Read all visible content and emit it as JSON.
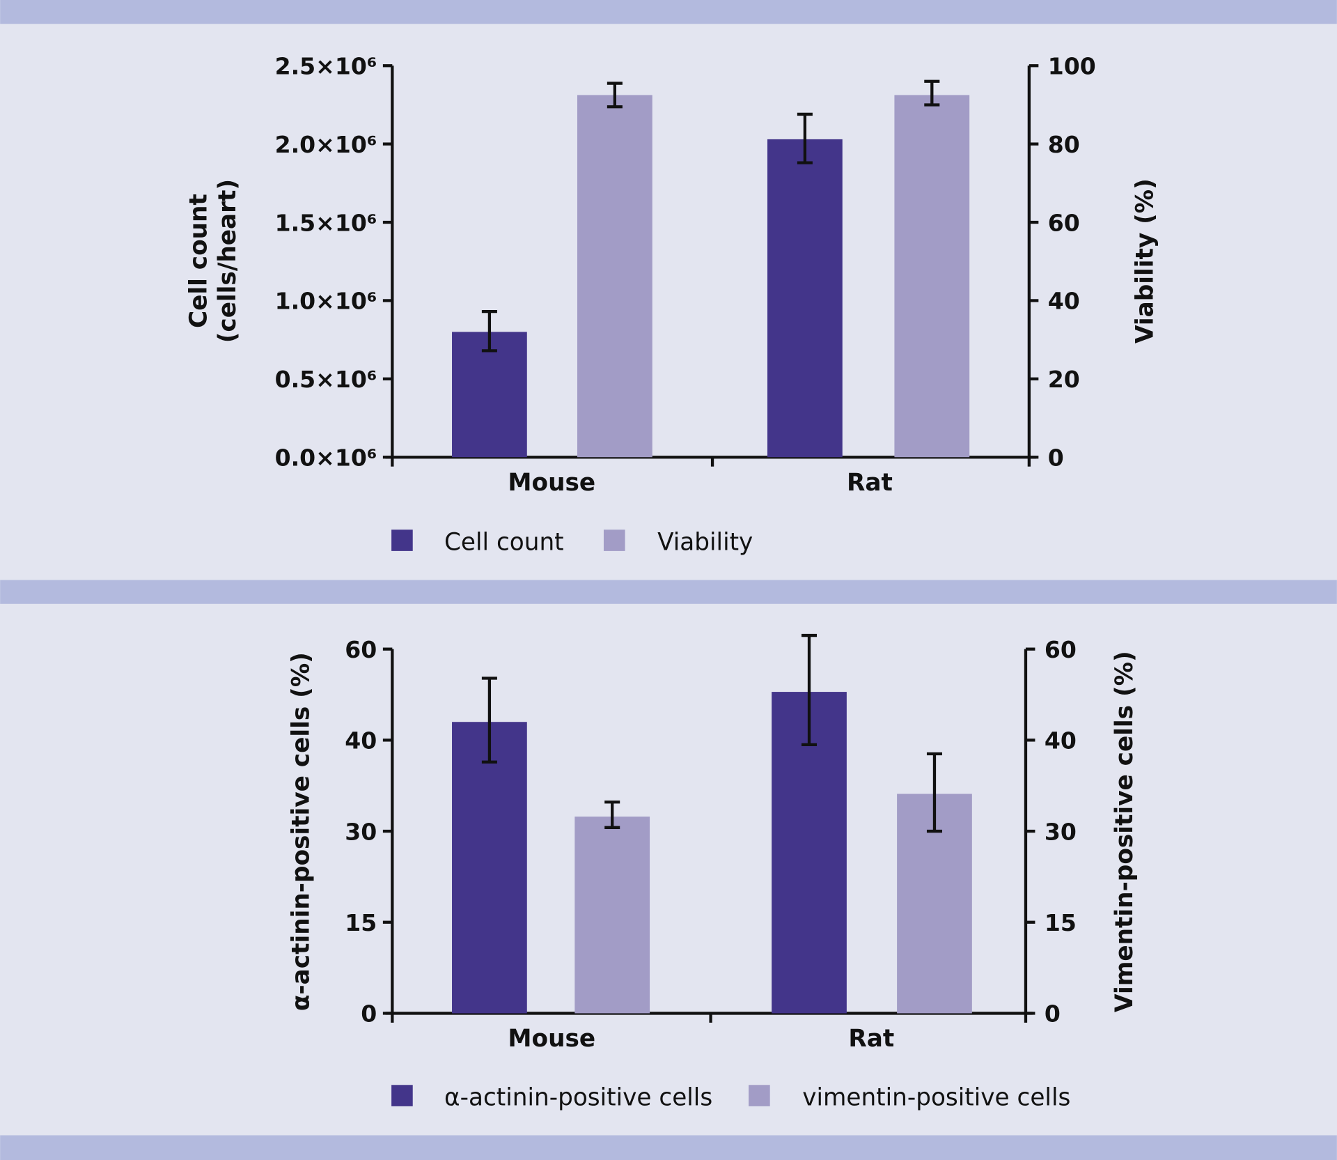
{
  "colors": {
    "band": "#b3bade",
    "background": "#e3e5f0",
    "dark": "#43358a",
    "light": "#a29cc6",
    "axis": "#111111"
  },
  "chart_data": [
    {
      "type": "bar",
      "categories": [
        "Mouse",
        "Rat"
      ],
      "left_axis": {
        "title_line1": "Cell count",
        "title_line2": "(cells/heart)",
        "range": [
          0,
          2.5
        ],
        "ticks": [
          0,
          0.5,
          1.0,
          1.5,
          2.0,
          2.5
        ],
        "tick_labels": [
          "0.0×10⁶",
          "0.5×10⁶",
          "1.0×10⁶",
          "1.5×10⁶",
          "2.0×10⁶",
          "2.5×10⁶"
        ],
        "unit": "×10⁶ cells/heart"
      },
      "right_axis": {
        "title": "Viability (%)",
        "range": [
          0,
          100
        ],
        "ticks": [
          0,
          20,
          40,
          60,
          80,
          100
        ],
        "tick_labels": [
          "0",
          "20",
          "40",
          "60",
          "80",
          "100"
        ]
      },
      "series": [
        {
          "name": "Cell count",
          "axis": "left",
          "color": "#43358a",
          "values": [
            0.8,
            2.03
          ],
          "error_low": [
            0.68,
            1.88
          ],
          "error_high": [
            0.93,
            2.19
          ]
        },
        {
          "name": "Viability",
          "axis": "right",
          "color": "#a29cc6",
          "values": [
            92.5,
            92.5
          ],
          "error_low": [
            89.5,
            90.0
          ],
          "error_high": [
            95.5,
            96.0
          ]
        }
      ],
      "legend": "bottom"
    },
    {
      "type": "bar",
      "categories": [
        "Mouse",
        "Rat"
      ],
      "left_axis": {
        "title": "α-actinin-positive cells (%)",
        "ticks": [
          0,
          15,
          30,
          40,
          60
        ],
        "tick_labels": [
          "0",
          "15",
          "30",
          "40",
          "60"
        ]
      },
      "right_axis": {
        "title": "Vimentin-positive cells (%)",
        "ticks": [
          0,
          15,
          30,
          40,
          60
        ],
        "tick_labels": [
          "0",
          "15",
          "30",
          "40",
          "60"
        ]
      },
      "series": [
        {
          "name": "α-actinin-positive cells",
          "axis": "left",
          "color": "#43358a",
          "values": [
            44,
            50.6
          ],
          "error_low": [
            37.6,
            39.5
          ],
          "error_high": [
            53.6,
            63
          ]
        },
        {
          "name": "vimentin-positive cells",
          "axis": "right",
          "color": "#a29cc6",
          "values": [
            31.6,
            34.1
          ],
          "error_low": [
            30.4,
            30
          ],
          "error_high": [
            33.2,
            38.5
          ]
        }
      ],
      "legend": "bottom"
    }
  ]
}
